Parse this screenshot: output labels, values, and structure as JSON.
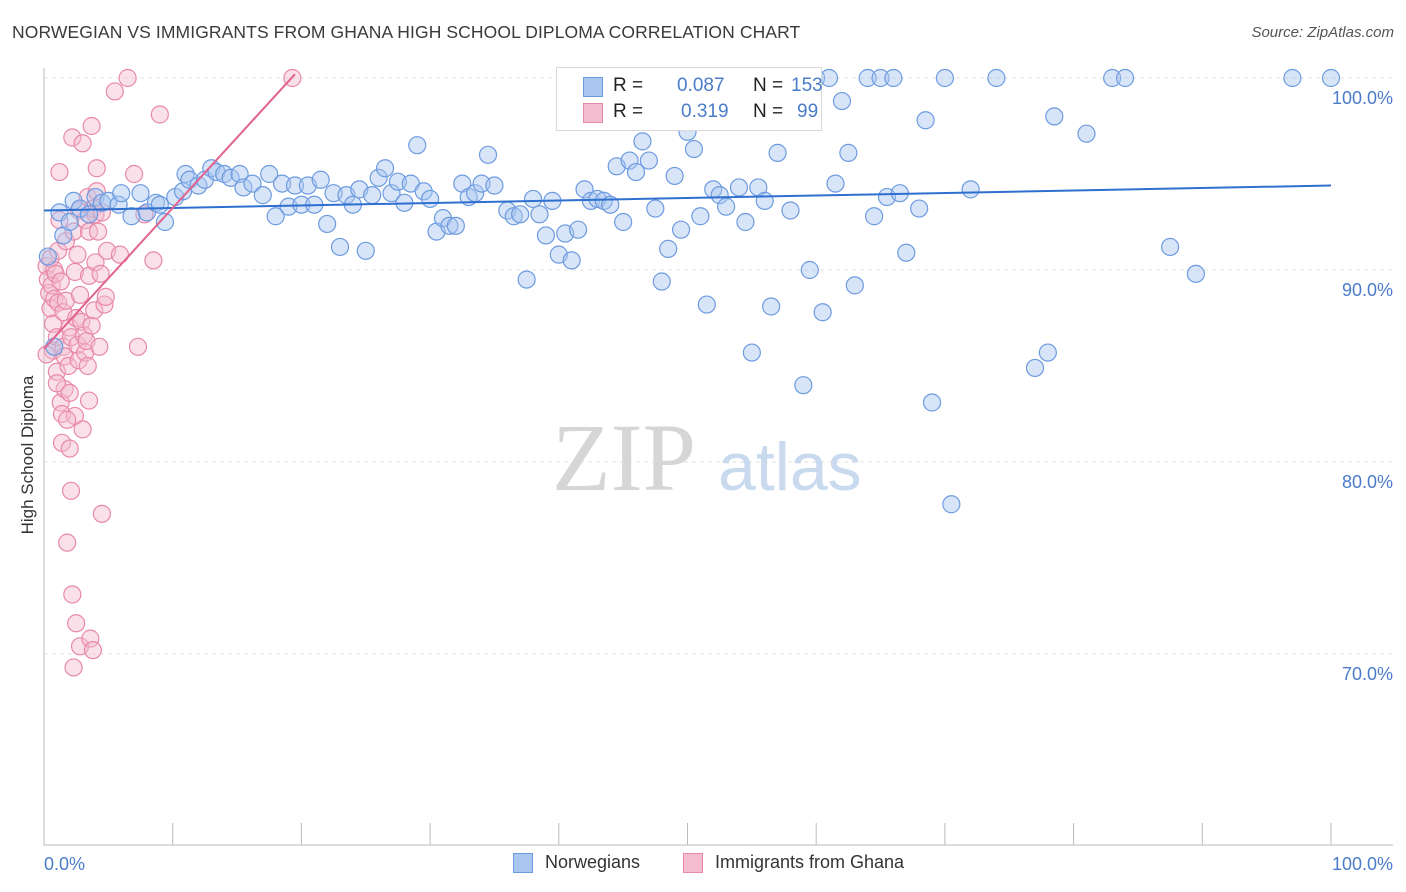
{
  "chart_data": {
    "type": "scatter",
    "title": "NORWEGIAN VS IMMIGRANTS FROM GHANA HIGH SCHOOL DIPLOMA CORRELATION CHART",
    "source": "Source: ZipAtlas.com",
    "ylabel": "High School Diploma",
    "xlabel": "",
    "xlim": [
      0,
      100
    ],
    "ylim": [
      60,
      101
    ],
    "x_tick_labels": {
      "left": "0.0%",
      "right": "100.0%"
    },
    "y_ticks": [
      {
        "value": 100,
        "label": "100.0%"
      },
      {
        "value": 90,
        "label": "90.0%"
      },
      {
        "value": 80,
        "label": "80.0%"
      },
      {
        "value": 70,
        "label": "70.0%"
      }
    ],
    "legend": [
      {
        "r_label": "R =",
        "r_value": "0.087",
        "n_label": "N =",
        "n_value": "153"
      },
      {
        "r_label": "R =",
        "r_value": "0.319",
        "n_label": "N =",
        "n_value": "99"
      }
    ],
    "watermark": {
      "zip": "ZIP",
      "atlas": "atlas"
    },
    "series": [
      {
        "name": "Norwegians",
        "color": "#6d9be0",
        "fill": "#a9c6f0",
        "line_color": "#2f6fd0",
        "trend": {
          "x0": 0,
          "y0": 93.1,
          "x1": 100,
          "y1": 94.4
        },
        "points": [
          [
            0.3,
            90.7
          ],
          [
            0.8,
            86
          ],
          [
            1.2,
            93
          ],
          [
            1.5,
            91.8
          ],
          [
            2,
            92.5
          ],
          [
            2.3,
            93.6
          ],
          [
            2.8,
            93.2
          ],
          [
            3.5,
            92.9
          ],
          [
            4,
            93.8
          ],
          [
            4.5,
            93.5
          ],
          [
            5,
            93.6
          ],
          [
            5.8,
            93.4
          ],
          [
            6,
            94
          ],
          [
            6.8,
            92.8
          ],
          [
            7.5,
            94
          ],
          [
            8,
            93
          ],
          [
            8.7,
            93.5
          ],
          [
            9,
            93.4
          ],
          [
            9.4,
            92.5
          ],
          [
            10.2,
            93.8
          ],
          [
            10.8,
            94.1
          ],
          [
            11,
            95
          ],
          [
            11.3,
            94.7
          ],
          [
            12,
            94.4
          ],
          [
            12.5,
            94.7
          ],
          [
            13,
            95.3
          ],
          [
            13.4,
            95.1
          ],
          [
            14,
            95
          ],
          [
            14.5,
            94.8
          ],
          [
            15.2,
            95
          ],
          [
            15.5,
            94.3
          ],
          [
            16.2,
            94.5
          ],
          [
            17,
            93.9
          ],
          [
            17.5,
            95
          ],
          [
            18,
            92.8
          ],
          [
            18.5,
            94.5
          ],
          [
            19,
            93.3
          ],
          [
            19.5,
            94.4
          ],
          [
            20,
            93.4
          ],
          [
            20.5,
            94.4
          ],
          [
            21,
            93.4
          ],
          [
            21.5,
            94.7
          ],
          [
            22,
            92.4
          ],
          [
            22.5,
            94
          ],
          [
            23,
            91.2
          ],
          [
            23.5,
            93.9
          ],
          [
            24,
            93.4
          ],
          [
            24.5,
            94.2
          ],
          [
            25,
            91
          ],
          [
            25.5,
            93.9
          ],
          [
            26,
            94.8
          ],
          [
            26.5,
            95.3
          ],
          [
            27,
            94
          ],
          [
            27.5,
            94.6
          ],
          [
            28,
            93.5
          ],
          [
            28.5,
            94.5
          ],
          [
            29,
            96.5
          ],
          [
            29.5,
            94.1
          ],
          [
            30,
            93.7
          ],
          [
            30.5,
            92
          ],
          [
            31,
            92.7
          ],
          [
            31.5,
            92.3
          ],
          [
            32,
            92.3
          ],
          [
            32.5,
            94.5
          ],
          [
            33,
            93.8
          ],
          [
            33.5,
            94
          ],
          [
            34,
            94.5
          ],
          [
            34.5,
            96
          ],
          [
            35,
            94.4
          ],
          [
            36,
            93.1
          ],
          [
            36.5,
            92.8
          ],
          [
            37,
            92.9
          ],
          [
            37.5,
            89.5
          ],
          [
            38,
            93.7
          ],
          [
            38.5,
            92.9
          ],
          [
            39,
            91.8
          ],
          [
            39.5,
            93.6
          ],
          [
            40,
            90.8
          ],
          [
            40.5,
            91.9
          ],
          [
            41,
            90.5
          ],
          [
            41.5,
            92.1
          ],
          [
            42,
            94.2
          ],
          [
            42.5,
            93.6
          ],
          [
            43,
            93.7
          ],
          [
            43.5,
            93.6
          ],
          [
            44,
            93.4
          ],
          [
            44.5,
            95.4
          ],
          [
            45,
            92.5
          ],
          [
            45.5,
            95.7
          ],
          [
            46,
            95.1
          ],
          [
            46.5,
            96.7
          ],
          [
            47,
            95.7
          ],
          [
            47.5,
            93.2
          ],
          [
            48,
            89.4
          ],
          [
            48.5,
            91.1
          ],
          [
            49,
            94.9
          ],
          [
            49.5,
            92.1
          ],
          [
            50,
            97.2
          ],
          [
            50.5,
            96.3
          ],
          [
            51,
            92.8
          ],
          [
            51.5,
            88.2
          ],
          [
            52,
            94.2
          ],
          [
            52.5,
            93.9
          ],
          [
            53,
            93.3
          ],
          [
            53.5,
            100
          ],
          [
            54,
            94.3
          ],
          [
            54.5,
            92.5
          ],
          [
            55,
            85.7
          ],
          [
            55.5,
            94.3
          ],
          [
            56,
            93.6
          ],
          [
            56.5,
            88.1
          ],
          [
            57,
            96.1
          ],
          [
            57.5,
            100
          ],
          [
            58,
            93.1
          ],
          [
            59,
            84
          ],
          [
            59.5,
            90
          ],
          [
            60,
            100
          ],
          [
            60.5,
            87.8
          ],
          [
            61,
            100
          ],
          [
            61.5,
            94.5
          ],
          [
            62,
            98.8
          ],
          [
            62.5,
            96.1
          ],
          [
            63,
            89.2
          ],
          [
            64,
            100
          ],
          [
            64.5,
            92.8
          ],
          [
            65,
            100
          ],
          [
            65.5,
            93.8
          ],
          [
            66,
            100
          ],
          [
            66.5,
            94
          ],
          [
            67,
            90.9
          ],
          [
            68,
            93.2
          ],
          [
            68.5,
            97.8
          ],
          [
            69,
            83.1
          ],
          [
            70,
            100
          ],
          [
            70.5,
            77.8
          ],
          [
            72,
            94.2
          ],
          [
            74,
            100
          ],
          [
            77,
            84.9
          ],
          [
            78,
            85.7
          ],
          [
            78.5,
            98
          ],
          [
            81,
            97.1
          ],
          [
            83,
            100
          ],
          [
            84,
            100
          ],
          [
            87.5,
            91.2
          ],
          [
            89.5,
            89.8
          ],
          [
            97,
            100
          ],
          [
            100,
            100
          ]
        ]
      },
      {
        "name": "Immigrants from Ghana",
        "color": "#e889a8",
        "fill": "#f5bccf",
        "line_color": "#e0628f",
        "trend": {
          "x0": 0,
          "y0": 85.9,
          "x1": 19.5,
          "y1": 100.2
        },
        "points": [
          [
            0.2,
            90.2
          ],
          [
            0.3,
            89.5
          ],
          [
            0.4,
            88.8
          ],
          [
            0.5,
            90.6
          ],
          [
            0.5,
            88
          ],
          [
            0.6,
            89.2
          ],
          [
            0.7,
            87.2
          ],
          [
            0.7,
            85.8
          ],
          [
            0.8,
            90
          ],
          [
            0.8,
            88.5
          ],
          [
            0.9,
            89.8
          ],
          [
            1,
            86.5
          ],
          [
            1,
            84.7
          ],
          [
            1.1,
            91
          ],
          [
            1.1,
            88.3
          ],
          [
            1.2,
            95.1
          ],
          [
            1.2,
            92.6
          ],
          [
            1.3,
            89.4
          ],
          [
            1.3,
            83.1
          ],
          [
            1.4,
            82.5
          ],
          [
            1.4,
            81
          ],
          [
            1.5,
            87.8
          ],
          [
            1.5,
            86
          ],
          [
            1.6,
            85.5
          ],
          [
            1.6,
            83.8
          ],
          [
            1.7,
            91.5
          ],
          [
            1.7,
            88.4
          ],
          [
            1.8,
            75.8
          ],
          [
            1.9,
            85
          ],
          [
            2,
            87
          ],
          [
            2,
            80.7
          ],
          [
            2.1,
            86.5
          ],
          [
            2.1,
            78.5
          ],
          [
            2.2,
            73.1
          ],
          [
            2.2,
            96.9
          ],
          [
            2.3,
            92
          ],
          [
            2.3,
            69.3
          ],
          [
            2.4,
            89.9
          ],
          [
            2.4,
            82.4
          ],
          [
            2.5,
            71.6
          ],
          [
            2.5,
            87.5
          ],
          [
            2.6,
            86.1
          ],
          [
            2.6,
            90.8
          ],
          [
            2.7,
            85.3
          ],
          [
            2.7,
            93.1
          ],
          [
            2.8,
            88.7
          ],
          [
            2.8,
            70.4
          ],
          [
            2.9,
            87.3
          ],
          [
            3,
            96.6
          ],
          [
            3,
            81.7
          ],
          [
            3.1,
            86.6
          ],
          [
            3.2,
            85.7
          ],
          [
            3.2,
            92.6
          ],
          [
            3.3,
            86.3
          ],
          [
            3.4,
            93.8
          ],
          [
            3.4,
            85
          ],
          [
            3.5,
            92
          ],
          [
            3.5,
            89.7
          ],
          [
            3.5,
            83.2
          ],
          [
            3.6,
            70.8
          ],
          [
            3.7,
            97.5
          ],
          [
            3.7,
            87.1
          ],
          [
            3.8,
            70.2
          ],
          [
            3.8,
            93.2
          ],
          [
            3.9,
            87.9
          ],
          [
            4,
            90.4
          ],
          [
            4,
            92.9
          ],
          [
            4.1,
            94.1
          ],
          [
            4.1,
            95.3
          ],
          [
            4.2,
            92
          ],
          [
            4.3,
            86
          ],
          [
            4.4,
            89.8
          ],
          [
            4.5,
            93
          ],
          [
            4.5,
            77.3
          ],
          [
            4.7,
            88.2
          ],
          [
            4.8,
            88.6
          ],
          [
            4.9,
            91
          ],
          [
            5.5,
            99.3
          ],
          [
            5.9,
            90.8
          ],
          [
            6.5,
            100
          ],
          [
            7,
            95
          ],
          [
            7.3,
            86
          ],
          [
            7.8,
            92.9
          ],
          [
            8.5,
            90.5
          ],
          [
            9,
            98.1
          ],
          [
            19.3,
            100
          ],
          [
            0.2,
            85.6
          ],
          [
            1,
            84.1
          ],
          [
            2,
            83.6
          ],
          [
            1.8,
            82.2
          ]
        ]
      }
    ]
  }
}
